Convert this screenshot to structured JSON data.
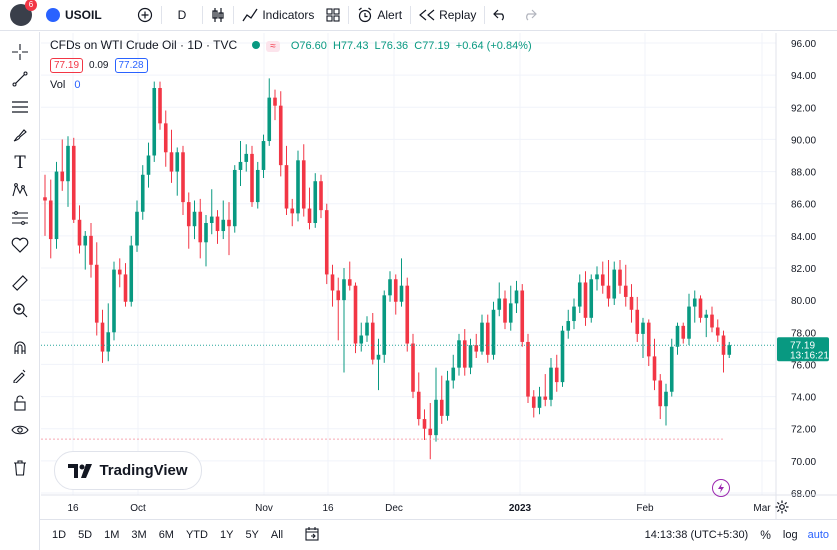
{
  "header": {
    "notification_count": "6",
    "symbol": "USOIL",
    "interval": "D",
    "indicators_label": "Indicators",
    "alert_label": "Alert",
    "replay_label": "Replay"
  },
  "legend": {
    "title": "CFDs on WTI Crude Oil · 1D · TVC",
    "open": "O76.60",
    "high": "H77.43",
    "low": "L76.36",
    "close": "C77.19",
    "change": "+0.64 (+0.84%)",
    "bid": "77.19",
    "spread": "0.09",
    "ask": "77.28",
    "vol_label": "Vol",
    "vol_value": "0"
  },
  "price_axis": {
    "ticks": [
      "96.00",
      "94.00",
      "92.00",
      "90.00",
      "88.00",
      "86.00",
      "84.00",
      "82.00",
      "80.00",
      "78.00",
      "76.00",
      "74.00",
      "72.00",
      "70.00",
      "68.00"
    ],
    "current_price": "77.19",
    "countdown": "13:16:21"
  },
  "time_axis": {
    "labels": [
      "16",
      "Oct",
      "Nov",
      "16",
      "Dec",
      "2023",
      "Feb",
      "Mar"
    ]
  },
  "bottom": {
    "ranges": [
      "1D",
      "5D",
      "1M",
      "3M",
      "6M",
      "YTD",
      "1Y",
      "5Y",
      "All"
    ],
    "clock": "14:13:38 (UTC+5:30)",
    "percent": "%",
    "log": "log",
    "auto": "auto"
  },
  "brand": {
    "name": "TradingView"
  },
  "colors": {
    "up": "#089981",
    "down": "#f23645",
    "price_line": "#26a69a",
    "grid": "#f0f3fa"
  },
  "chart_data": {
    "type": "candlestick",
    "title": "CFDs on WTI Crude Oil · 1D · TVC",
    "ylim": [
      68,
      96
    ],
    "x_labels": [
      "16",
      "Oct",
      "Nov",
      "16",
      "Dec",
      "2023",
      "Feb",
      "Mar"
    ],
    "last_close": 77.19,
    "candles": [
      {
        "o": 86.4,
        "h": 87.8,
        "l": 84.0,
        "c": 86.2
      },
      {
        "o": 86.2,
        "h": 87.5,
        "l": 82.6,
        "c": 83.8
      },
      {
        "o": 83.8,
        "h": 88.6,
        "l": 83.2,
        "c": 88.0
      },
      {
        "o": 88.0,
        "h": 90.0,
        "l": 86.8,
        "c": 87.4
      },
      {
        "o": 87.4,
        "h": 90.2,
        "l": 85.8,
        "c": 89.6
      },
      {
        "o": 89.6,
        "h": 90.1,
        "l": 84.8,
        "c": 85.0
      },
      {
        "o": 85.0,
        "h": 85.9,
        "l": 82.9,
        "c": 83.4
      },
      {
        "o": 83.4,
        "h": 84.3,
        "l": 81.9,
        "c": 84.0
      },
      {
        "o": 84.0,
        "h": 84.8,
        "l": 81.4,
        "c": 82.2
      },
      {
        "o": 82.2,
        "h": 83.6,
        "l": 77.8,
        "c": 78.6
      },
      {
        "o": 78.6,
        "h": 79.4,
        "l": 76.1,
        "c": 76.8
      },
      {
        "o": 76.8,
        "h": 79.8,
        "l": 76.2,
        "c": 78.0
      },
      {
        "o": 78.0,
        "h": 82.4,
        "l": 77.5,
        "c": 81.9
      },
      {
        "o": 81.9,
        "h": 82.6,
        "l": 80.8,
        "c": 81.6
      },
      {
        "o": 81.6,
        "h": 82.3,
        "l": 79.6,
        "c": 79.9
      },
      {
        "o": 79.9,
        "h": 84.0,
        "l": 79.6,
        "c": 83.4
      },
      {
        "o": 83.4,
        "h": 86.2,
        "l": 83.0,
        "c": 85.5
      },
      {
        "o": 85.5,
        "h": 88.4,
        "l": 85.0,
        "c": 87.8
      },
      {
        "o": 87.8,
        "h": 89.8,
        "l": 87.0,
        "c": 89.0
      },
      {
        "o": 89.0,
        "h": 93.6,
        "l": 88.6,
        "c": 93.2
      },
      {
        "o": 93.2,
        "h": 93.6,
        "l": 90.6,
        "c": 91.0
      },
      {
        "o": 91.0,
        "h": 91.8,
        "l": 88.3,
        "c": 89.2
      },
      {
        "o": 89.2,
        "h": 90.6,
        "l": 87.3,
        "c": 88.0
      },
      {
        "o": 88.0,
        "h": 89.5,
        "l": 86.5,
        "c": 89.2
      },
      {
        "o": 89.2,
        "h": 89.6,
        "l": 85.3,
        "c": 86.1
      },
      {
        "o": 86.1,
        "h": 86.7,
        "l": 83.2,
        "c": 84.6
      },
      {
        "o": 84.6,
        "h": 86.2,
        "l": 83.8,
        "c": 85.5
      },
      {
        "o": 85.5,
        "h": 86.3,
        "l": 82.6,
        "c": 83.6
      },
      {
        "o": 83.6,
        "h": 85.3,
        "l": 82.1,
        "c": 84.8
      },
      {
        "o": 84.8,
        "h": 86.9,
        "l": 84.1,
        "c": 85.2
      },
      {
        "o": 85.2,
        "h": 85.6,
        "l": 83.5,
        "c": 84.3
      },
      {
        "o": 84.3,
        "h": 86.2,
        "l": 83.8,
        "c": 85.0
      },
      {
        "o": 85.0,
        "h": 86.1,
        "l": 82.8,
        "c": 84.6
      },
      {
        "o": 84.6,
        "h": 88.4,
        "l": 84.2,
        "c": 88.1
      },
      {
        "o": 88.1,
        "h": 89.9,
        "l": 87.1,
        "c": 88.6
      },
      {
        "o": 88.6,
        "h": 89.7,
        "l": 88.0,
        "c": 89.1
      },
      {
        "o": 89.1,
        "h": 89.6,
        "l": 85.8,
        "c": 86.1
      },
      {
        "o": 86.1,
        "h": 88.6,
        "l": 85.7,
        "c": 88.1
      },
      {
        "o": 88.1,
        "h": 90.3,
        "l": 87.6,
        "c": 89.9
      },
      {
        "o": 89.9,
        "h": 93.8,
        "l": 89.6,
        "c": 92.6
      },
      {
        "o": 92.6,
        "h": 93.1,
        "l": 91.2,
        "c": 92.1
      },
      {
        "o": 92.1,
        "h": 93.0,
        "l": 87.7,
        "c": 88.4
      },
      {
        "o": 88.4,
        "h": 89.6,
        "l": 85.3,
        "c": 85.7
      },
      {
        "o": 85.7,
        "h": 86.3,
        "l": 84.6,
        "c": 85.4
      },
      {
        "o": 85.4,
        "h": 89.3,
        "l": 84.9,
        "c": 88.7
      },
      {
        "o": 88.7,
        "h": 89.7,
        "l": 85.2,
        "c": 85.7
      },
      {
        "o": 85.7,
        "h": 87.0,
        "l": 84.4,
        "c": 84.8
      },
      {
        "o": 84.8,
        "h": 87.9,
        "l": 84.5,
        "c": 87.4
      },
      {
        "o": 87.4,
        "h": 87.8,
        "l": 85.1,
        "c": 85.6
      },
      {
        "o": 85.6,
        "h": 86.0,
        "l": 81.0,
        "c": 81.6
      },
      {
        "o": 81.6,
        "h": 82.2,
        "l": 79.6,
        "c": 80.6
      },
      {
        "o": 80.6,
        "h": 81.4,
        "l": 77.5,
        "c": 80.0
      },
      {
        "o": 80.0,
        "h": 82.0,
        "l": 75.5,
        "c": 81.3
      },
      {
        "o": 81.3,
        "h": 82.4,
        "l": 80.6,
        "c": 80.9
      },
      {
        "o": 80.9,
        "h": 81.1,
        "l": 76.7,
        "c": 77.3
      },
      {
        "o": 77.3,
        "h": 78.6,
        "l": 76.8,
        "c": 77.8
      },
      {
        "o": 77.8,
        "h": 79.0,
        "l": 77.4,
        "c": 78.6
      },
      {
        "o": 78.6,
        "h": 79.2,
        "l": 76.0,
        "c": 76.3
      },
      {
        "o": 76.3,
        "h": 77.6,
        "l": 74.4,
        "c": 76.6
      },
      {
        "o": 76.6,
        "h": 80.6,
        "l": 76.1,
        "c": 80.3
      },
      {
        "o": 80.3,
        "h": 81.8,
        "l": 79.9,
        "c": 81.3
      },
      {
        "o": 81.3,
        "h": 81.6,
        "l": 79.1,
        "c": 79.9
      },
      {
        "o": 79.9,
        "h": 82.6,
        "l": 79.6,
        "c": 80.9
      },
      {
        "o": 80.9,
        "h": 81.4,
        "l": 76.8,
        "c": 77.3
      },
      {
        "o": 77.3,
        "h": 77.9,
        "l": 73.9,
        "c": 74.3
      },
      {
        "o": 74.3,
        "h": 75.5,
        "l": 72.2,
        "c": 72.6
      },
      {
        "o": 72.6,
        "h": 73.2,
        "l": 71.3,
        "c": 72.0
      },
      {
        "o": 72.0,
        "h": 73.6,
        "l": 70.1,
        "c": 71.6
      },
      {
        "o": 71.6,
        "h": 75.8,
        "l": 71.2,
        "c": 73.8
      },
      {
        "o": 73.8,
        "h": 75.3,
        "l": 72.3,
        "c": 72.8
      },
      {
        "o": 72.8,
        "h": 75.6,
        "l": 72.5,
        "c": 75.0
      },
      {
        "o": 75.0,
        "h": 76.6,
        "l": 74.5,
        "c": 75.8
      },
      {
        "o": 75.8,
        "h": 77.9,
        "l": 75.3,
        "c": 77.5
      },
      {
        "o": 77.5,
        "h": 78.2,
        "l": 75.3,
        "c": 75.8
      },
      {
        "o": 75.8,
        "h": 77.6,
        "l": 75.4,
        "c": 77.2
      },
      {
        "o": 77.2,
        "h": 77.9,
        "l": 76.4,
        "c": 76.8
      },
      {
        "o": 76.8,
        "h": 79.1,
        "l": 76.6,
        "c": 78.6
      },
      {
        "o": 78.6,
        "h": 79.1,
        "l": 76.1,
        "c": 76.6
      },
      {
        "o": 76.6,
        "h": 79.9,
        "l": 76.3,
        "c": 79.4
      },
      {
        "o": 79.4,
        "h": 81.1,
        "l": 79.0,
        "c": 80.1
      },
      {
        "o": 80.1,
        "h": 80.6,
        "l": 78.2,
        "c": 78.6
      },
      {
        "o": 78.6,
        "h": 80.9,
        "l": 78.1,
        "c": 79.8
      },
      {
        "o": 79.8,
        "h": 81.2,
        "l": 79.2,
        "c": 80.6
      },
      {
        "o": 80.6,
        "h": 81.0,
        "l": 77.1,
        "c": 77.4
      },
      {
        "o": 77.4,
        "h": 77.9,
        "l": 73.6,
        "c": 74.0
      },
      {
        "o": 74.0,
        "h": 74.4,
        "l": 72.7,
        "c": 73.3
      },
      {
        "o": 73.3,
        "h": 74.6,
        "l": 72.9,
        "c": 74.0
      },
      {
        "o": 74.0,
        "h": 75.4,
        "l": 73.4,
        "c": 73.8
      },
      {
        "o": 73.8,
        "h": 76.4,
        "l": 73.4,
        "c": 75.8
      },
      {
        "o": 75.8,
        "h": 76.6,
        "l": 74.3,
        "c": 74.9
      },
      {
        "o": 74.9,
        "h": 78.4,
        "l": 74.6,
        "c": 78.1
      },
      {
        "o": 78.1,
        "h": 79.4,
        "l": 77.6,
        "c": 78.7
      },
      {
        "o": 78.7,
        "h": 80.1,
        "l": 78.2,
        "c": 79.6
      },
      {
        "o": 79.6,
        "h": 81.6,
        "l": 79.2,
        "c": 81.1
      },
      {
        "o": 81.1,
        "h": 81.8,
        "l": 78.4,
        "c": 78.9
      },
      {
        "o": 78.9,
        "h": 81.6,
        "l": 78.6,
        "c": 81.3
      },
      {
        "o": 81.3,
        "h": 82.1,
        "l": 80.6,
        "c": 81.6
      },
      {
        "o": 81.6,
        "h": 82.4,
        "l": 80.4,
        "c": 80.9
      },
      {
        "o": 80.9,
        "h": 82.5,
        "l": 79.6,
        "c": 80.1
      },
      {
        "o": 80.1,
        "h": 82.4,
        "l": 79.7,
        "c": 81.9
      },
      {
        "o": 81.9,
        "h": 82.5,
        "l": 80.4,
        "c": 80.9
      },
      {
        "o": 80.9,
        "h": 82.2,
        "l": 79.6,
        "c": 80.2
      },
      {
        "o": 80.2,
        "h": 81.0,
        "l": 78.6,
        "c": 79.4
      },
      {
        "o": 79.4,
        "h": 80.2,
        "l": 77.4,
        "c": 77.9
      },
      {
        "o": 77.9,
        "h": 78.9,
        "l": 76.4,
        "c": 78.6
      },
      {
        "o": 78.6,
        "h": 78.8,
        "l": 75.9,
        "c": 76.5
      },
      {
        "o": 76.5,
        "h": 77.6,
        "l": 74.4,
        "c": 75.0
      },
      {
        "o": 75.0,
        "h": 75.4,
        "l": 72.6,
        "c": 73.4
      },
      {
        "o": 73.4,
        "h": 74.8,
        "l": 72.2,
        "c": 74.3
      },
      {
        "o": 74.3,
        "h": 77.6,
        "l": 74.0,
        "c": 77.1
      },
      {
        "o": 77.1,
        "h": 78.6,
        "l": 76.6,
        "c": 78.4
      },
      {
        "o": 78.4,
        "h": 78.6,
        "l": 77.3,
        "c": 77.6
      },
      {
        "o": 77.6,
        "h": 80.4,
        "l": 77.2,
        "c": 79.6
      },
      {
        "o": 79.6,
        "h": 80.6,
        "l": 78.6,
        "c": 80.1
      },
      {
        "o": 80.1,
        "h": 80.3,
        "l": 78.6,
        "c": 78.9
      },
      {
        "o": 78.9,
        "h": 79.4,
        "l": 77.7,
        "c": 79.1
      },
      {
        "o": 79.1,
        "h": 79.6,
        "l": 78.0,
        "c": 78.3
      },
      {
        "o": 78.3,
        "h": 78.8,
        "l": 77.4,
        "c": 77.8
      },
      {
        "o": 77.8,
        "h": 78.1,
        "l": 75.5,
        "c": 76.6
      },
      {
        "o": 76.6,
        "h": 77.4,
        "l": 76.4,
        "c": 77.2
      }
    ]
  }
}
